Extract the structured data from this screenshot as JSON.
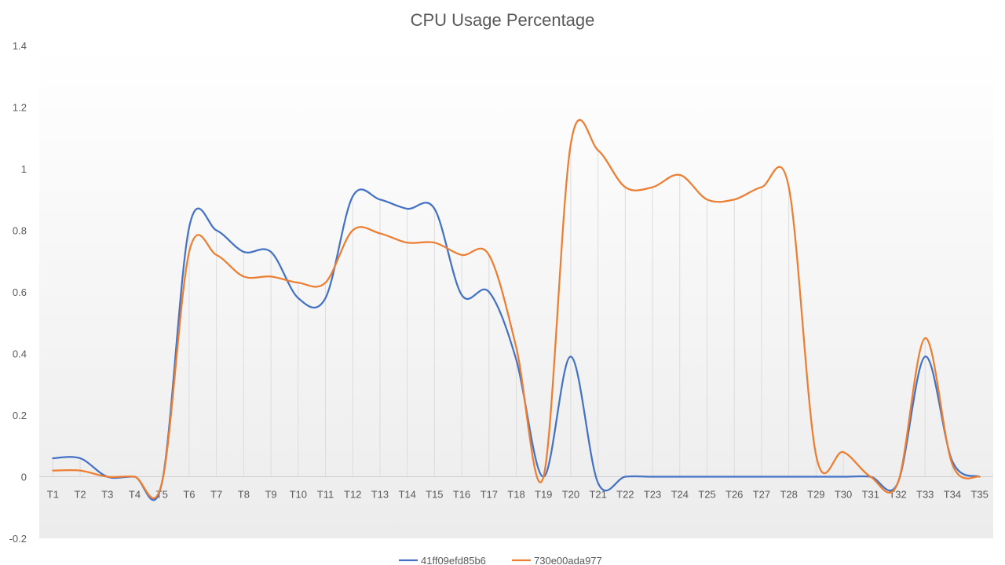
{
  "chart_data": {
    "type": "line",
    "title": "CPU Usage Percentage",
    "xlabel": "",
    "ylabel": "",
    "categories": [
      "T1",
      "T2",
      "T3",
      "T4",
      "T5",
      "T6",
      "T7",
      "T8",
      "T9",
      "T10",
      "T11",
      "T12",
      "T13",
      "T14",
      "T15",
      "T16",
      "T17",
      "T18",
      "T19",
      "T20",
      "T21",
      "T22",
      "T23",
      "T24",
      "T25",
      "T26",
      "T27",
      "T28",
      "T29",
      "T30",
      "T31",
      "T32",
      "T33",
      "T34",
      "T35"
    ],
    "ylim": [
      -0.2,
      1.4
    ],
    "yticks": [
      "1.4",
      "1.2",
      "1",
      "0.8",
      "0.6",
      "0.4",
      "0.2",
      "0",
      "-0.2"
    ],
    "ytick_values": [
      1.4,
      1.2,
      1.0,
      0.8,
      0.6,
      0.4,
      0.2,
      0,
      -0.2
    ],
    "grid": "vertical drop lines",
    "legend_position": "bottom",
    "series": [
      {
        "name": "41ff09efd85b6",
        "color": "#4472C4",
        "values": [
          0.06,
          0.06,
          0.0,
          0.0,
          -0.02,
          0.81,
          0.8,
          0.73,
          0.73,
          0.58,
          0.58,
          0.91,
          0.9,
          0.87,
          0.87,
          0.59,
          0.6,
          0.38,
          0.0,
          0.39,
          -0.02,
          0.0,
          0.0,
          0.0,
          0.0,
          0.0,
          0.0,
          0.0,
          0.0,
          0.0,
          0.0,
          -0.02,
          0.39,
          0.05,
          0.0
        ]
      },
      {
        "name": "730e00ada977",
        "color": "#ED7D31",
        "values": [
          0.02,
          0.02,
          0.0,
          0.0,
          -0.02,
          0.73,
          0.72,
          0.65,
          0.65,
          0.63,
          0.63,
          0.8,
          0.79,
          0.76,
          0.76,
          0.72,
          0.72,
          0.42,
          0.0,
          1.08,
          1.06,
          0.94,
          0.94,
          0.98,
          0.9,
          0.9,
          0.94,
          0.94,
          0.07,
          0.08,
          0.0,
          -0.02,
          0.45,
          0.04,
          0.0
        ]
      }
    ]
  }
}
